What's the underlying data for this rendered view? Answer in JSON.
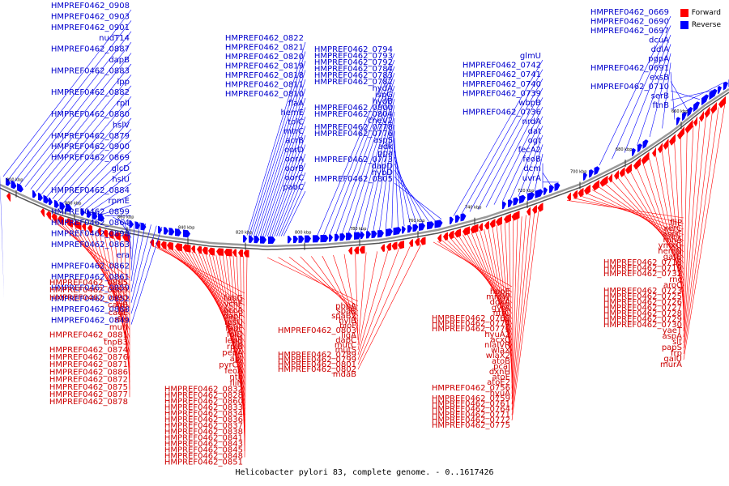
{
  "caption": "Helicobacter pylori 83, complete genome. - 0..1617426",
  "legend": {
    "forward_label": "Forward",
    "reverse_label": "Reverse",
    "forward_color": "#ff0000",
    "reverse_color": "#0000ff"
  },
  "ticks": [
    "900 kbp",
    "880 kbp",
    "860 kbp",
    "840 kbp",
    "820 kbp",
    "800 kbp",
    "780 kbp",
    "760 kbp",
    "740 kbp",
    "720 kbp",
    "700 kbp",
    "680 kbp",
    "660 kbp"
  ],
  "reverse_genes": [
    "HMPREF0462_0908",
    "HMPREF0462_0903",
    "HMPREF0462_0901",
    "nudT14",
    "HMPREF0462_0887",
    "dapB",
    "HMPREF0462_0883",
    "lpp",
    "HMPREF0462_0882",
    "rplI",
    "HMPREF0462_0880",
    "hslV",
    "HMPREF0462_0879",
    "HMPREF0462_0900",
    "HMPREF0462_0869",
    "glcD",
    "hslU",
    "HMPREF0462_0884",
    "rpmE",
    "HMPREF0462_0899",
    "HMPREF0462_0864",
    "HMPREF0462_0898",
    "HMPREF0462_0863",
    "era",
    "HMPREF0462_0862",
    "HMPREF0462_0861",
    "HMPREF0462_0859",
    "HMPREF0462_0852",
    "HMPREF0462_0888",
    "HMPREF0462_0849",
    "HMPREF0462_0822",
    "HMPREF0462_0821",
    "HMPREF0462_0820",
    "HMPREF0462_0819",
    "HMPREF0462_0818",
    "HMPREF0462_0811",
    "HMPREF0462_0810",
    "flaA",
    "hemE",
    "tolC",
    "mtrC",
    "acrB",
    "oorD",
    "oorA",
    "oorB",
    "oorC",
    "pabC",
    "HMPREF0462_0794",
    "HMPREF0462_0793",
    "HMPREF0462_0792",
    "HMPREF0462_0784",
    "HMPREF0462_0783",
    "HMPREF0462_0782",
    "hydA",
    "ispG",
    "hydB",
    "HMPREF0462_0800",
    "HMPREF0462_0804",
    "cheV2",
    "HMPREF0462_0778",
    "HMPREF0462_0776",
    "aspS",
    "adk",
    "ppa",
    "HMPREF0462_0773",
    "dapD",
    "hybD",
    "HMPREF0462_0805",
    "glmU",
    "HMPREF0462_0742",
    "HMPREF0462_0741",
    "HMPREF0462_0740",
    "HMPREF0462_0739",
    "wbpB",
    "HMPREF0462_0736",
    "nrdA",
    "dat",
    "ogt",
    "fecA2",
    "feoB",
    "dcm",
    "uvrA",
    "HMPREF0462_0669",
    "HMPREF0462_0690",
    "HMPREF0462_0697",
    "dcuA",
    "ddlA",
    "pgpA",
    "HMPREF0462_0691",
    "exsB",
    "HMPREF0462_0710",
    "serB",
    "ftnB"
  ],
  "forward_genes": [
    "HMPREF0462_0885",
    "HMPREF0462_0889",
    "HMPREF0462_0890",
    "cagB",
    "cagE",
    "rho",
    "murI",
    "HMPREF0462_0881",
    "tnpB3",
    "HMPREF0462_0874",
    "HMPREF0462_0876",
    "HMPREF0462_0871",
    "HMPREF0462_0886",
    "HMPREF0462_0872",
    "HMPREF0462_0875",
    "HMPREF0462_0877",
    "HMPREF0462_0878",
    "fabG",
    "ychF",
    "accA",
    "dapF",
    "rpsU",
    "fabF",
    "folD",
    "lepB",
    "rpiB",
    "pepA",
    "apt",
    "pyrC2",
    "feoA",
    "nth",
    "fliN",
    "HMPREF0462_0832",
    "HMPREF0462_0828",
    "HMPREF0462_0860",
    "HMPREF0462_0833",
    "HMPREF0462_0834",
    "HMPREF0462_0836",
    "HMPREF0462_0837",
    "HMPREF0462_0838",
    "HMPREF0462_0841",
    "HMPREF0462_0843",
    "HMPREF0462_0845",
    "HMPREF0462_0848",
    "HMPREF0462_0851",
    "pbpA",
    "spaB",
    "spaB2",
    "hylB",
    "bioF",
    "HMPREF0462_0803",
    "ligA",
    "dapC",
    "murC",
    "mutS",
    "HMPREF0462_0789",
    "HMPREF0462_0799",
    "HMPREF0462_0801",
    "HMPREF0462_0802",
    "mdaB",
    "hopE",
    "mraW",
    "dgkA",
    "gyrA",
    "ntrC",
    "HMPREF0462_0769",
    "HMPREF0462_0774",
    "HMPREF0462_0770",
    "hyuA2",
    "acxC",
    "nlaIVR",
    "wlaX",
    "wlaX2",
    "atoB",
    "pcaI",
    "dxnH",
    "atoE",
    "atoE2",
    "HMPREF0462_0756",
    "hyuA",
    "HMPREF0462_0759",
    "HMPREF0462_0761",
    "HMPREF0462_0764",
    "HMPREF0462_0771",
    "HMPREF0462_0772",
    "HMPREF0462_0775",
    "fliP",
    "xerC",
    "aspC",
    "rnhA",
    "ymxG",
    "hemN",
    "gatB",
    "HMPREF0462_0718",
    "HMPREF0462_0719",
    "HMPREF0462_0732",
    "rnc",
    "aroC",
    "HMPREF0462_0723",
    "HMPREF0462_0725",
    "HMPREF0462_0726",
    "HMPREF0462_0727",
    "HMPREF0462_0728",
    "HMPREF0462_0729",
    "HMPREF0462_0730",
    "yaeT",
    "aspA",
    "slt",
    "papS",
    "frp",
    "galU",
    "murA"
  ]
}
